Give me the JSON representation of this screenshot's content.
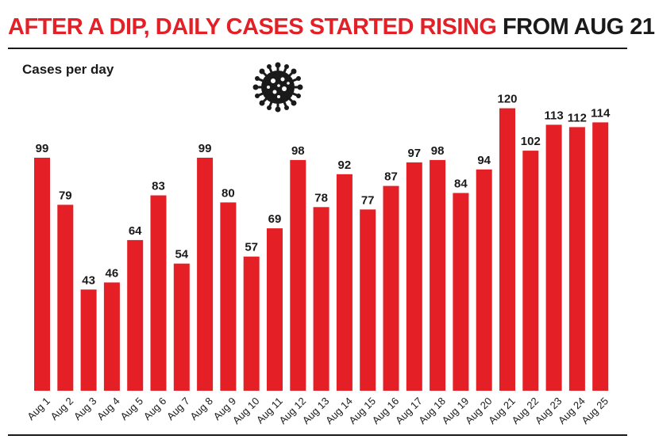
{
  "header": {
    "title_highlight": "AFTER A DIP, DAILY CASES STARTED RISING",
    "title_rest": "FROM AUG 21"
  },
  "colors": {
    "bar": "#e41f26",
    "title_accent": "#e41f26",
    "text": "#1a1a1a"
  },
  "icons": {
    "decoration": "virus-icon"
  },
  "chart_data": {
    "type": "bar",
    "title": "AFTER A DIP, DAILY CASES STARTED RISING FROM AUG 21",
    "ylabel": "Cases per day",
    "xlabel": "",
    "ylim": [
      0,
      140
    ],
    "grid": false,
    "categories": [
      "Aug 1",
      "Aug 2",
      "Aug 3",
      "Aug 4",
      "Aug 5",
      "Aug 6",
      "Aug 7",
      "Aug 8",
      "Aug 9",
      "Aug 10",
      "Aug 11",
      "Aug 12",
      "Aug 13",
      "Aug 14",
      "Aug 15",
      "Aug 16",
      "Aug 17",
      "Aug 18",
      "Aug 19",
      "Aug 20",
      "Aug 21",
      "Aug 22",
      "Aug 23",
      "Aug 24",
      "Aug 25"
    ],
    "values": [
      99,
      79,
      43,
      46,
      64,
      83,
      54,
      99,
      80,
      57,
      69,
      98,
      78,
      92,
      77,
      87,
      97,
      98,
      84,
      94,
      120,
      102,
      113,
      112,
      114
    ]
  }
}
